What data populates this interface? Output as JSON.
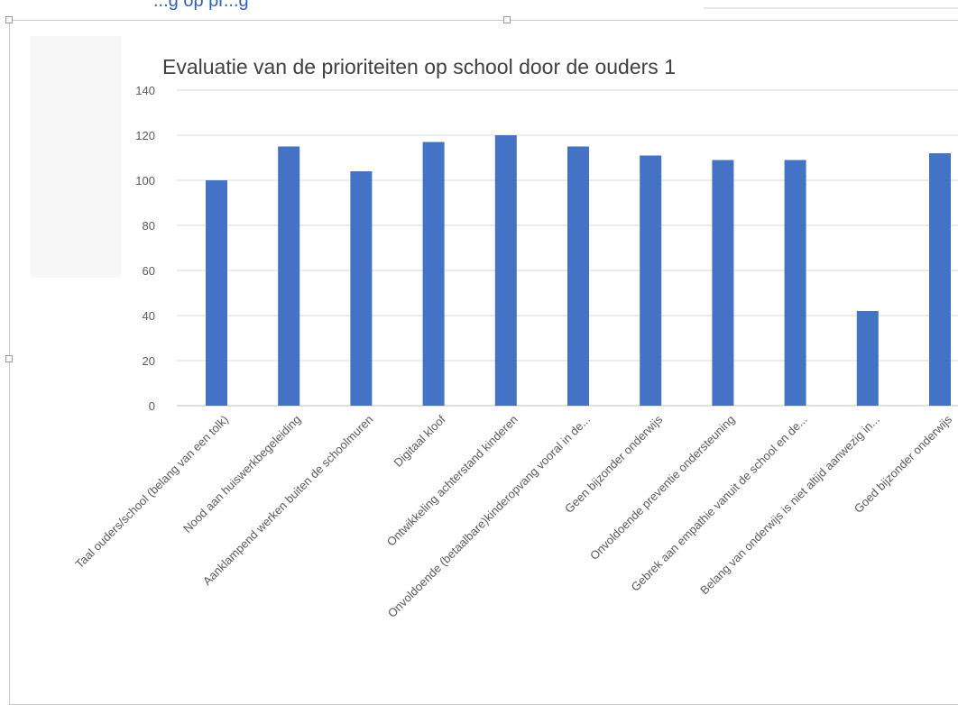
{
  "header": {
    "partial_text": "...g op pr...g"
  },
  "chart_data": {
    "type": "bar",
    "title": "Evaluatie van de prioriteiten op school door de ouders 1",
    "xlabel": "",
    "ylabel": "",
    "ylim": [
      0,
      140
    ],
    "yticks": [
      0,
      20,
      40,
      60,
      80,
      100,
      120,
      140
    ],
    "grid": true,
    "legend": "none",
    "bar_color": "#4472c4",
    "categories": [
      "Taal ouders/school (belang van een tolk)",
      "Nood aan huiswerkbegeleiding",
      "Aanklampend werken buiten de schoolmuren",
      "Digitaal kloof",
      "Ontwikkeling achterstand kinderen",
      "Onvoldoende (betaalbare)kinderopvang vooral in de...",
      "Geen bijzonder onderwijs",
      "Onvoldoende preventie ondersteuning",
      "Gebrek aan empathie vanuit de school en de...",
      "Belang van onderwijs is niet altijd aanwezig in...",
      "Goed bijzonder onderwijs"
    ],
    "values": [
      100,
      115,
      104,
      117,
      120,
      115,
      111,
      109,
      109,
      42,
      112
    ]
  }
}
